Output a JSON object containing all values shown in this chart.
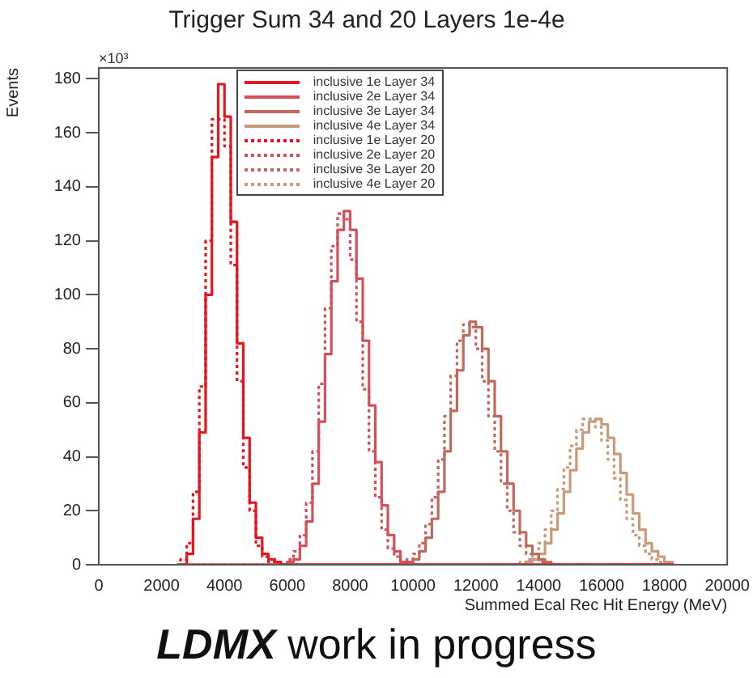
{
  "chart_data": {
    "type": "step",
    "title": "Trigger Sum 34 and 20 Layers 1e-4e",
    "xlabel": "Summed Ecal Rec Hit Energy (MeV)",
    "ylabel": "Events",
    "x": [
      2500,
      2700,
      2900,
      3100,
      3300,
      3500,
      3700,
      3900,
      4100,
      4300,
      4500,
      4700,
      4900,
      5100,
      5300,
      5500,
      5700,
      5900,
      6100,
      6300,
      6500,
      6700,
      6900,
      7100,
      7300,
      7500,
      7700,
      7900,
      8100,
      8300,
      8500,
      8700,
      8900,
      9100,
      9300,
      9500,
      9700,
      9900,
      10100,
      10300,
      10500,
      10700,
      10900,
      11100,
      11300,
      11500,
      11700,
      11900,
      12100,
      12300,
      12500,
      12700,
      12900,
      13100,
      13300,
      13500,
      13700,
      13900,
      14100,
      14300,
      14500,
      14700,
      14900,
      15100,
      15300,
      15500,
      15700,
      15900,
      16100,
      16300,
      16500,
      16700,
      16900,
      17100,
      17300,
      17500,
      17700,
      17900,
      18100,
      18300
    ],
    "series": [
      {
        "name": "inclusive 1e Layer 34",
        "color": "#e8141c",
        "line_style": "solid",
        "values": [
          0,
          0,
          4,
          17,
          49,
          100,
          151,
          178,
          166,
          127,
          82,
          47,
          23,
          10,
          4,
          2,
          1,
          0,
          0,
          0,
          0,
          0,
          0,
          0,
          0,
          0,
          0,
          0,
          0,
          0,
          0,
          0,
          0,
          0,
          0,
          0,
          0,
          0,
          0,
          0,
          0,
          0,
          0,
          0,
          0,
          0,
          0,
          0,
          0,
          0,
          0,
          0,
          0,
          0,
          0,
          0,
          0,
          0,
          0,
          0,
          0,
          0,
          0,
          0,
          0,
          0,
          0,
          0,
          0,
          0,
          0,
          0,
          0,
          0,
          0,
          0,
          0,
          0,
          0,
          0
        ]
      },
      {
        "name": "inclusive 2e Layer 34",
        "color": "#d4505a",
        "line_style": "solid",
        "values": [
          0,
          0,
          0,
          0,
          0,
          0,
          0,
          0,
          0,
          0,
          0,
          0,
          0,
          0,
          0,
          0,
          0,
          0,
          1,
          2,
          7,
          16,
          30,
          53,
          78,
          105,
          124,
          131,
          124,
          106,
          83,
          59,
          38,
          22,
          11,
          5,
          1,
          1,
          0,
          0,
          0,
          0,
          0,
          0,
          0,
          0,
          0,
          0,
          0,
          0,
          0,
          0,
          0,
          0,
          0,
          0,
          0,
          0,
          0,
          0,
          0,
          0,
          0,
          0,
          0,
          0,
          0,
          0,
          0,
          0,
          0,
          0,
          0,
          0,
          0,
          0,
          0,
          0,
          0,
          0
        ]
      },
      {
        "name": "inclusive 3e Layer 34",
        "color": "#c0695c",
        "line_style": "solid",
        "values": [
          0,
          0,
          0,
          0,
          0,
          0,
          0,
          0,
          0,
          0,
          0,
          0,
          0,
          0,
          0,
          0,
          0,
          0,
          0,
          0,
          0,
          0,
          0,
          0,
          0,
          0,
          0,
          0,
          0,
          0,
          0,
          0,
          0,
          0,
          0,
          0,
          0,
          1,
          2,
          5,
          10,
          17,
          27,
          42,
          57,
          72,
          85,
          90,
          88,
          80,
          68,
          55,
          42,
          30,
          20,
          12,
          7,
          4,
          2,
          1,
          0,
          0,
          0,
          0,
          0,
          0,
          0,
          0,
          0,
          0,
          0,
          0,
          0,
          0,
          0,
          0,
          0,
          0,
          0,
          0
        ]
      },
      {
        "name": "inclusive 4e Layer 34",
        "color": "#c99a78",
        "line_style": "solid",
        "values": [
          0,
          0,
          0,
          0,
          0,
          0,
          0,
          0,
          0,
          0,
          0,
          0,
          0,
          0,
          0,
          0,
          0,
          0,
          0,
          0,
          0,
          0,
          0,
          0,
          0,
          0,
          0,
          0,
          0,
          0,
          0,
          0,
          0,
          0,
          0,
          0,
          0,
          0,
          0,
          0,
          0,
          0,
          0,
          0,
          0,
          0,
          0,
          0,
          0,
          0,
          0,
          0,
          0,
          0,
          0,
          0,
          1,
          2,
          4,
          8,
          13,
          19,
          27,
          35,
          43,
          49,
          53,
          54,
          52,
          47,
          41,
          34,
          26,
          19,
          13,
          8,
          5,
          3,
          1,
          1
        ]
      },
      {
        "name": "inclusive 1e Layer 20",
        "color": "#e8141c",
        "line_style": "dotted",
        "values": [
          0,
          2,
          8,
          27,
          66,
          120,
          165,
          165,
          155,
          111,
          68,
          36,
          20,
          7,
          3,
          1,
          0,
          0,
          0,
          0,
          0,
          0,
          0,
          0,
          0,
          0,
          0,
          0,
          0,
          0,
          0,
          0,
          0,
          0,
          0,
          0,
          0,
          0,
          0,
          0,
          0,
          0,
          0,
          0,
          0,
          0,
          0,
          0,
          0,
          0,
          0,
          0,
          0,
          0,
          0,
          0,
          0,
          0,
          0,
          0,
          0,
          0,
          0,
          0,
          0,
          0,
          0,
          0,
          0,
          0,
          0,
          0,
          0,
          0,
          0,
          0,
          0,
          0,
          0,
          0
        ]
      },
      {
        "name": "inclusive 2e Layer 20",
        "color": "#d4505a",
        "line_style": "dotted",
        "values": [
          0,
          0,
          0,
          0,
          0,
          0,
          0,
          0,
          0,
          0,
          0,
          0,
          0,
          0,
          0,
          0,
          0,
          0,
          2,
          5,
          11,
          23,
          42,
          67,
          95,
          118,
          130,
          128,
          113,
          90,
          65,
          42,
          25,
          13,
          6,
          3,
          1,
          0,
          0,
          0,
          0,
          0,
          0,
          0,
          0,
          0,
          0,
          0,
          0,
          0,
          0,
          0,
          0,
          0,
          0,
          0,
          0,
          0,
          0,
          0,
          0,
          0,
          0,
          0,
          0,
          0,
          0,
          0,
          0,
          0,
          0,
          0,
          0,
          0,
          0,
          0,
          0,
          0,
          0,
          0
        ]
      },
      {
        "name": "inclusive 3e Layer 20",
        "color": "#c0695c",
        "line_style": "dotted",
        "values": [
          0,
          0,
          0,
          0,
          0,
          0,
          0,
          0,
          0,
          0,
          0,
          0,
          0,
          0,
          0,
          0,
          0,
          0,
          0,
          0,
          0,
          0,
          0,
          0,
          0,
          0,
          0,
          0,
          0,
          0,
          0,
          0,
          0,
          0,
          0,
          0,
          1,
          2,
          4,
          8,
          15,
          25,
          39,
          55,
          70,
          83,
          89,
          88,
          80,
          68,
          55,
          42,
          30,
          20,
          12,
          7,
          4,
          2,
          1,
          0,
          0,
          0,
          0,
          0,
          0,
          0,
          0,
          0,
          0,
          0,
          0,
          0,
          0,
          0,
          0,
          0,
          0,
          0,
          0,
          0
        ]
      },
      {
        "name": "inclusive 4e Layer 20",
        "color": "#c99a78",
        "line_style": "dotted",
        "values": [
          0,
          0,
          0,
          0,
          0,
          0,
          0,
          0,
          0,
          0,
          0,
          0,
          0,
          0,
          0,
          0,
          0,
          0,
          0,
          0,
          0,
          0,
          0,
          0,
          0,
          0,
          0,
          0,
          0,
          0,
          0,
          0,
          0,
          0,
          0,
          0,
          0,
          0,
          0,
          0,
          0,
          0,
          0,
          0,
          0,
          0,
          0,
          0,
          0,
          0,
          0,
          0,
          0,
          0,
          0,
          1,
          2,
          4,
          8,
          13,
          20,
          28,
          36,
          44,
          50,
          54,
          54,
          51,
          46,
          39,
          32,
          24,
          17,
          11,
          7,
          4,
          2,
          1,
          0,
          0
        ]
      }
    ],
    "xlim": [
      0,
      20000
    ],
    "xticks": [
      0,
      2000,
      4000,
      6000,
      8000,
      10000,
      12000,
      14000,
      16000,
      18000,
      20000
    ],
    "ylim": [
      0,
      184
    ],
    "yticks": [
      0,
      20,
      40,
      60,
      80,
      100,
      120,
      140,
      160,
      180
    ],
    "legend": "top",
    "grid": false,
    "annotations": [
      "×10³",
      "LDMX work in progress"
    ]
  }
}
